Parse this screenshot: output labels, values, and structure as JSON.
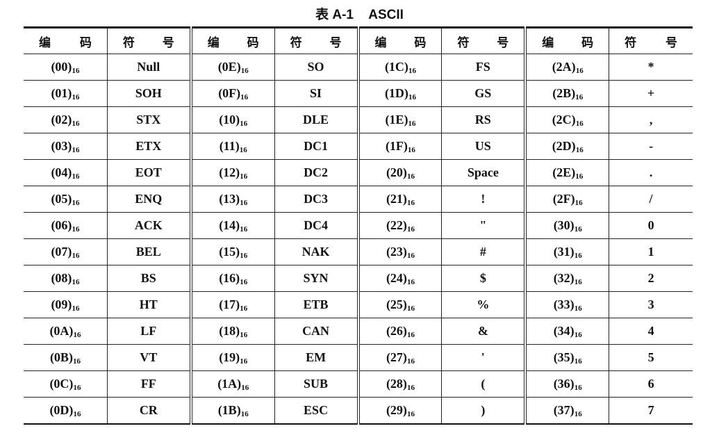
{
  "title": {
    "label": "表 A-1",
    "name": "ASCII"
  },
  "headers": {
    "code": [
      "编",
      "码"
    ],
    "symbol": [
      "符",
      "号"
    ]
  },
  "base": "16",
  "groups": [
    [
      [
        "(00)",
        "Null"
      ],
      [
        "(01)",
        "SOH"
      ],
      [
        "(02)",
        "STX"
      ],
      [
        "(03)",
        "ETX"
      ],
      [
        "(04)",
        "EOT"
      ],
      [
        "(05)",
        "ENQ"
      ],
      [
        "(06)",
        "ACK"
      ],
      [
        "(07)",
        "BEL"
      ],
      [
        "(08)",
        "BS"
      ],
      [
        "(09)",
        "HT"
      ],
      [
        "(0A)",
        "LF"
      ],
      [
        "(0B)",
        "VT"
      ],
      [
        "(0C)",
        "FF"
      ],
      [
        "(0D)",
        "CR"
      ]
    ],
    [
      [
        "(0E)",
        "SO"
      ],
      [
        "(0F)",
        "SI"
      ],
      [
        "(10)",
        "DLE"
      ],
      [
        "(11)",
        "DC1"
      ],
      [
        "(12)",
        "DC2"
      ],
      [
        "(13)",
        "DC3"
      ],
      [
        "(14)",
        "DC4"
      ],
      [
        "(15)",
        "NAK"
      ],
      [
        "(16)",
        "SYN"
      ],
      [
        "(17)",
        "ETB"
      ],
      [
        "(18)",
        "CAN"
      ],
      [
        "(19)",
        "EM"
      ],
      [
        "(1A)",
        "SUB"
      ],
      [
        "(1B)",
        "ESC"
      ]
    ],
    [
      [
        "(1C)",
        "FS"
      ],
      [
        "(1D)",
        "GS"
      ],
      [
        "(1E)",
        "RS"
      ],
      [
        "(1F)",
        "US"
      ],
      [
        "(20)",
        "Space"
      ],
      [
        "(21)",
        "!"
      ],
      [
        "(22)",
        "\""
      ],
      [
        "(23)",
        "#"
      ],
      [
        "(24)",
        "$"
      ],
      [
        "(25)",
        "%"
      ],
      [
        "(26)",
        "&"
      ],
      [
        "(27)",
        "'"
      ],
      [
        "(28)",
        "("
      ],
      [
        "(29)",
        ")"
      ]
    ],
    [
      [
        "(2A)",
        "*"
      ],
      [
        "(2B)",
        "+"
      ],
      [
        "(2C)",
        ","
      ],
      [
        "(2D)",
        "-"
      ],
      [
        "(2E)",
        "."
      ],
      [
        "(2F)",
        "/"
      ],
      [
        "(30)",
        "0"
      ],
      [
        "(31)",
        "1"
      ],
      [
        "(32)",
        "2"
      ],
      [
        "(33)",
        "3"
      ],
      [
        "(34)",
        "4"
      ],
      [
        "(35)",
        "5"
      ],
      [
        "(36)",
        "6"
      ],
      [
        "(37)",
        "7"
      ]
    ]
  ]
}
